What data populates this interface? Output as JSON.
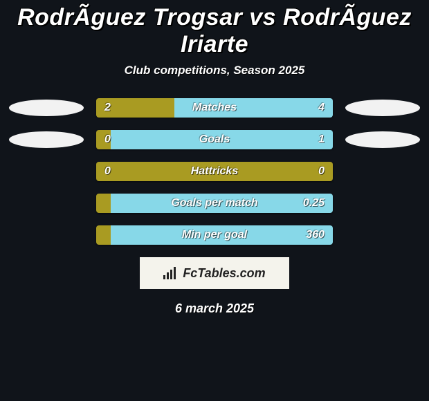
{
  "title": "RodrÃ­guez Trogsar vs RodrÃ­guez Iriarte",
  "subtitle": "Club competitions, Season 2025",
  "date": "6 march 2025",
  "logo_text": "FcTables.com",
  "colors": {
    "background": "#10141a",
    "left_bar": "#a99b22",
    "right_bar": "#87d8e8",
    "ellipse_left": "#f2f2f2",
    "ellipse_right": "#f2f2f2",
    "logo_bg": "#f4f3ec"
  },
  "rows": [
    {
      "label": "Matches",
      "left_value": "2",
      "right_value": "4",
      "left_pct": 33,
      "right_pct": 67,
      "show_left_ellipse": true,
      "show_right_ellipse": true
    },
    {
      "label": "Goals",
      "left_value": "0",
      "right_value": "1",
      "left_pct": 6,
      "right_pct": 94,
      "show_left_ellipse": true,
      "show_right_ellipse": true
    },
    {
      "label": "Hattricks",
      "left_value": "0",
      "right_value": "0",
      "left_pct": 100,
      "right_pct": 0,
      "show_left_ellipse": false,
      "show_right_ellipse": false
    },
    {
      "label": "Goals per match",
      "left_value": "",
      "right_value": "0.25",
      "left_pct": 6,
      "right_pct": 94,
      "show_left_ellipse": false,
      "show_right_ellipse": false
    },
    {
      "label": "Min per goal",
      "left_value": "",
      "right_value": "360",
      "left_pct": 6,
      "right_pct": 94,
      "show_left_ellipse": false,
      "show_right_ellipse": false
    }
  ]
}
